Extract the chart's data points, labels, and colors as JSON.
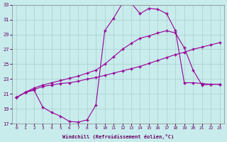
{
  "xlabel": "Windchill (Refroidissement éolien,°C)",
  "bg_color": "#c8ecec",
  "line_color": "#990099",
  "grid_color": "#aacccc",
  "xlim": [
    -0.5,
    23.5
  ],
  "ylim": [
    17,
    33
  ],
  "xticks": [
    0,
    1,
    2,
    3,
    4,
    5,
    6,
    7,
    8,
    9,
    10,
    11,
    12,
    13,
    14,
    15,
    16,
    17,
    18,
    19,
    20,
    21,
    22,
    23
  ],
  "yticks": [
    17,
    19,
    21,
    23,
    25,
    27,
    29,
    31,
    33
  ],
  "line1_x": [
    0,
    1,
    2,
    3,
    4,
    5,
    6,
    7,
    8,
    9,
    10,
    11,
    12,
    13,
    14,
    15,
    16,
    17,
    18,
    19,
    20,
    21,
    22,
    23
  ],
  "line1_y": [
    20.5,
    21.2,
    21.6,
    22.0,
    22.2,
    22.4,
    22.5,
    22.7,
    23.0,
    23.2,
    23.5,
    23.8,
    24.1,
    24.4,
    24.7,
    25.1,
    25.5,
    25.9,
    26.3,
    26.6,
    27.0,
    27.3,
    27.6,
    27.9
  ],
  "line2_x": [
    0,
    1,
    2,
    3,
    4,
    5,
    6,
    7,
    8,
    9,
    10,
    11,
    12,
    13,
    14,
    15,
    16,
    17,
    18,
    19,
    20,
    21,
    22,
    23
  ],
  "line2_y": [
    20.5,
    21.2,
    21.8,
    22.2,
    22.5,
    22.8,
    23.1,
    23.4,
    23.8,
    24.2,
    25.0,
    26.0,
    27.0,
    27.8,
    28.5,
    28.8,
    29.2,
    29.5,
    29.2,
    27.2,
    24.2,
    22.2,
    22.3,
    22.3
  ],
  "line3_x": [
    0,
    1,
    2,
    3,
    4,
    5,
    6,
    7,
    8,
    9,
    10,
    11,
    12,
    13,
    14,
    15,
    16,
    17,
    18,
    19,
    20,
    21,
    22,
    23
  ],
  "line3_y": [
    20.5,
    21.2,
    21.5,
    19.2,
    18.5,
    18.0,
    17.3,
    17.2,
    17.5,
    19.5,
    29.5,
    31.2,
    33.2,
    33.2,
    31.8,
    32.5,
    32.4,
    31.8,
    29.5,
    22.5,
    22.5,
    22.4,
    22.3,
    22.3
  ]
}
